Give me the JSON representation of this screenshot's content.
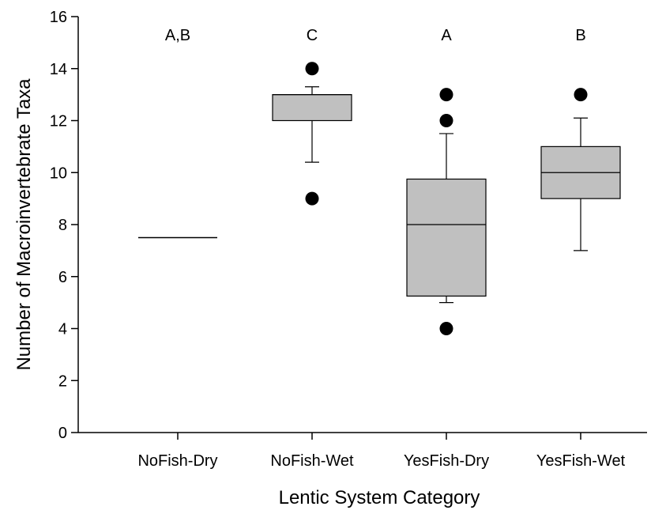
{
  "chart_data": {
    "type": "box",
    "title": "",
    "xlabel": "Lentic System Category",
    "ylabel": "Number of Macroinvertebrate Taxa",
    "ylim": [
      0,
      16
    ],
    "yticks": [
      0,
      2,
      4,
      6,
      8,
      10,
      12,
      14,
      16
    ],
    "grid": false,
    "legend": "none",
    "box_fill": "#c0c0c0",
    "categories": [
      "NoFish-Dry",
      "NoFish-Wet",
      "YesFish-Dry",
      "YesFish-Wet"
    ],
    "groups": [
      {
        "category": "NoFish-Dry",
        "letter": "A,B",
        "q1": 7.5,
        "median": 7.5,
        "q3": 7.5,
        "whisker_low": 7.5,
        "whisker_high": 7.5,
        "outliers": []
      },
      {
        "category": "NoFish-Wet",
        "letter": "C",
        "q1": 12,
        "median": 13,
        "q3": 13,
        "whisker_low": 10.4,
        "whisker_high": 13.3,
        "outliers": [
          14,
          9
        ]
      },
      {
        "category": "YesFish-Dry",
        "letter": "A",
        "q1": 5.25,
        "median": 8,
        "q3": 9.75,
        "whisker_low": 5,
        "whisker_high": 11.5,
        "outliers": [
          13,
          12,
          4
        ]
      },
      {
        "category": "YesFish-Wet",
        "letter": "B",
        "q1": 9,
        "median": 10,
        "q3": 11,
        "whisker_low": 7,
        "whisker_high": 12.1,
        "outliers": [
          13
        ]
      }
    ]
  }
}
